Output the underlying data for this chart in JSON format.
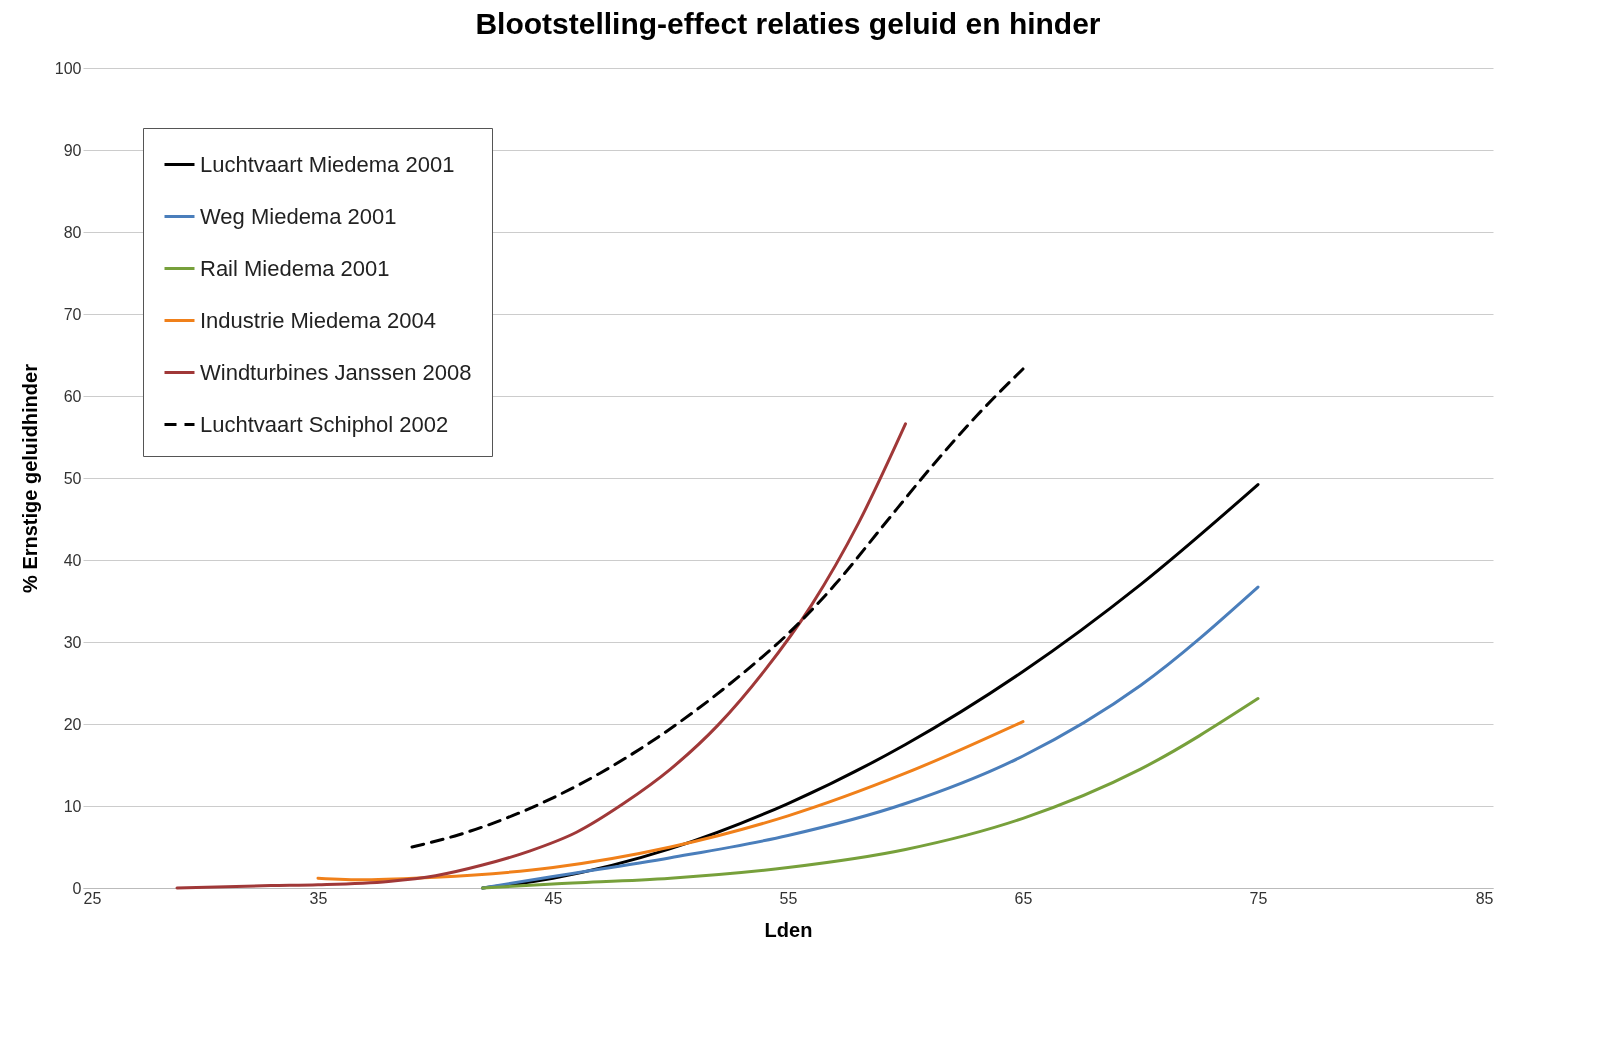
{
  "chart_data": {
    "type": "line",
    "title": "Blootstelling-effect  relaties geluid en hinder",
    "xlabel": "Lden",
    "ylabel": "% Ernstige geluidhinder",
    "xlim": [
      25,
      85
    ],
    "xticks": [
      25,
      35,
      45,
      55,
      65,
      75,
      85
    ],
    "ylim": [
      0,
      100
    ],
    "yticks": [
      0,
      10,
      20,
      30,
      40,
      50,
      60,
      70,
      80,
      90,
      100
    ],
    "grid": "y",
    "legend": "top left",
    "marker": "none",
    "series": [
      {
        "name": "Luchtvaart Miedema 2001",
        "color": "#000000",
        "line_style": "solid",
        "x": [
          42,
          45,
          50,
          55,
          60,
          65,
          70,
          75
        ],
        "values": [
          0,
          1.2,
          4.8,
          10.3,
          17.5,
          26.4,
          37,
          49.2
        ]
      },
      {
        "name": "Weg Miedema 2001",
        "color": "#4a7ebb",
        "line_style": "solid",
        "x": [
          42,
          45,
          50,
          55,
          60,
          65,
          70,
          75
        ],
        "values": [
          0,
          1.4,
          3.7,
          6.4,
          10.3,
          16.1,
          24.7,
          36.7
        ]
      },
      {
        "name": "Rail Miedema 2001",
        "color": "#77a03b",
        "line_style": "solid",
        "x": [
          42,
          45,
          50,
          55,
          60,
          65,
          70,
          75
        ],
        "values": [
          0,
          0.5,
          1.2,
          2.5,
          4.7,
          8.5,
          14.5,
          23.1
        ]
      },
      {
        "name": "Industrie Miedema 2004",
        "color": "#f0801a",
        "line_style": "solid",
        "x": [
          35,
          37,
          40,
          45,
          50,
          55,
          60,
          65
        ],
        "values": [
          1.2,
          1,
          1.3,
          2.5,
          5,
          8.8,
          14,
          20.3
        ]
      },
      {
        "name": "Windturbines Janssen 2008",
        "color": "#a03838",
        "line_style": "solid",
        "x": [
          29,
          33,
          35,
          38,
          40,
          42,
          44,
          46,
          48,
          50,
          52,
          54,
          56,
          58,
          60
        ],
        "values": [
          0,
          0.3,
          0.4,
          0.8,
          1.5,
          2.8,
          4.5,
          6.8,
          10.3,
          14.5,
          19.8,
          26.5,
          34.5,
          44.5,
          56.6
        ]
      },
      {
        "name": "Luchtvaart Schiphol 2002",
        "color": "#000000",
        "line_style": "dashed",
        "x": [
          39,
          41,
          43,
          45,
          47,
          49,
          51,
          53,
          55,
          57,
          59,
          61,
          63,
          65
        ],
        "values": [
          5,
          6.5,
          8.5,
          11,
          14,
          17.5,
          21.5,
          26,
          31,
          37,
          44,
          51,
          57.5,
          63.3
        ]
      }
    ]
  }
}
